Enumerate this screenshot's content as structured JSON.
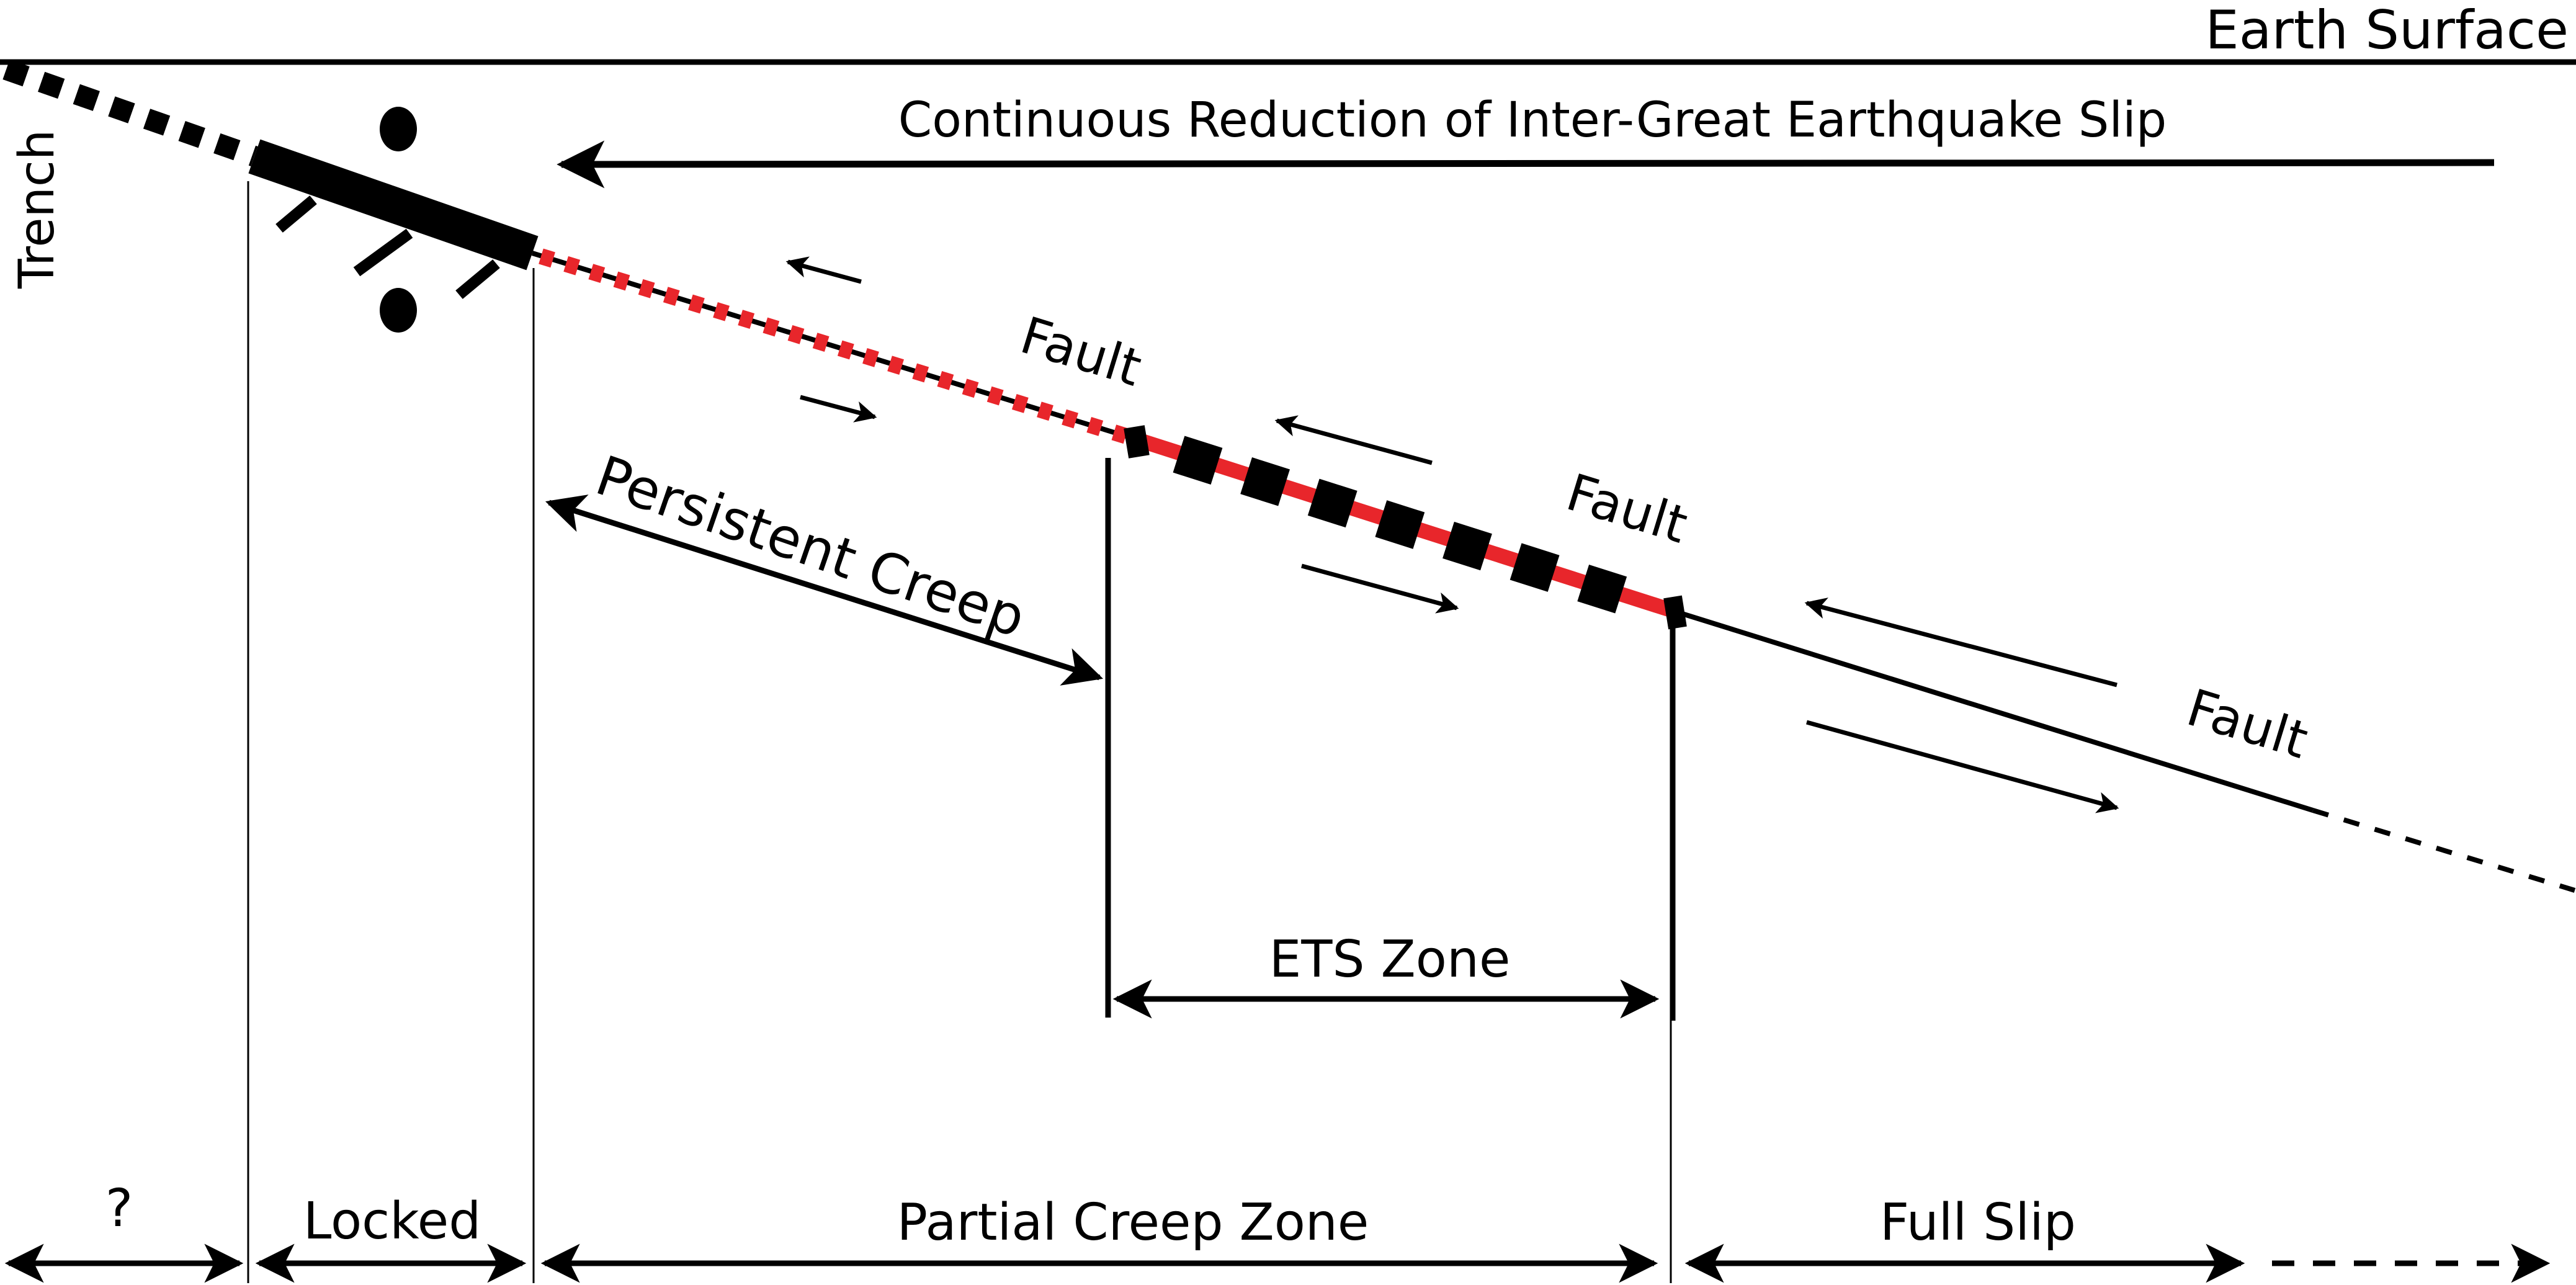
{
  "labels": {
    "earth_surface": "Earth Surface",
    "trench": "Trench",
    "continuous_reduction": "Continuous Reduction of Inter-Great Earthquake Slip",
    "fault": "Fault",
    "persistent_creep": "Persistent Creep",
    "ets_zone": "ETS Zone",
    "unknown_zone": "?",
    "locked": "Locked",
    "partial_creep_zone": "Partial Creep Zone",
    "full_slip": "Full Slip"
  },
  "colors": {
    "ink": "#000000",
    "creep_red": "#e8262b",
    "background": "#ffffff"
  }
}
